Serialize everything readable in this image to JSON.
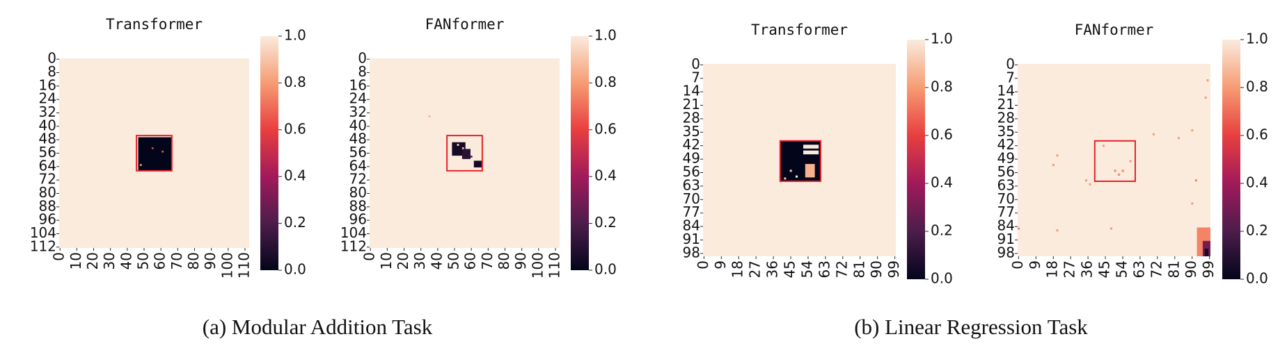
{
  "chart_data": [
    {
      "type": "heatmap",
      "title": "Transformer",
      "size": 113,
      "fill": 1.0,
      "xticks": [
        0,
        10,
        20,
        30,
        40,
        50,
        60,
        70,
        80,
        90,
        100,
        110
      ],
      "yticks": [
        0,
        8,
        16,
        24,
        32,
        40,
        48,
        56,
        64,
        72,
        80,
        88,
        96,
        104,
        112
      ],
      "blocks": [
        {
          "rows": [
            47,
            66
          ],
          "cols": [
            47,
            66
          ],
          "value": 0.0
        }
      ],
      "points": [
        {
          "row": 53,
          "col": 55,
          "value": 0.6
        },
        {
          "row": 55,
          "col": 61,
          "value": 0.65
        },
        {
          "row": 63,
          "col": 48,
          "value": 0.8
        }
      ],
      "highlight": {
        "rows": [
          46,
          67
        ],
        "cols": [
          46,
          67
        ],
        "color": "#e8202a"
      },
      "clim": [
        0,
        1
      ],
      "cticks": [
        {
          "value": 0,
          "label": "0.0"
        },
        0.2,
        0.4,
        0.6,
        0.8,
        {
          "value": 1,
          "label": "1.0"
        }
      ],
      "colormap": [
        "#03051a",
        "#4c1d4b",
        "#a11a5b",
        "#e83f3f",
        "#f69c73",
        "#faebdd"
      ]
    },
    {
      "type": "heatmap",
      "title": "FANformer",
      "size": 113,
      "fill": 1.0,
      "xticks": [
        0,
        10,
        20,
        30,
        40,
        50,
        60,
        70,
        80,
        90,
        100,
        110
      ],
      "yticks": [
        0,
        8,
        16,
        24,
        32,
        40,
        48,
        56,
        64,
        72,
        80,
        88,
        96,
        104,
        112
      ],
      "blocks": [
        {
          "rows": [
            50,
            57
          ],
          "cols": [
            49,
            56
          ],
          "value": 0.05
        },
        {
          "rows": [
            54,
            59
          ],
          "cols": [
            55,
            59
          ],
          "value": 0.1
        },
        {
          "rows": [
            61,
            64
          ],
          "cols": [
            62,
            66
          ],
          "value": 0.05
        }
      ],
      "points": [
        {
          "row": 51,
          "col": 52,
          "value": 1.0
        },
        {
          "row": 53,
          "col": 55,
          "value": 0.9
        },
        {
          "row": 58,
          "col": 60,
          "value": 0.2
        },
        {
          "row": 34,
          "col": 35,
          "value": 0.85
        }
      ],
      "highlight": {
        "rows": [
          46,
          67
        ],
        "cols": [
          46,
          67
        ],
        "color": "#e8202a"
      },
      "clim": [
        0,
        1
      ],
      "cticks": [
        {
          "value": 0,
          "label": "0.0"
        },
        0.2,
        0.4,
        0.6,
        0.8,
        {
          "value": 1,
          "label": "1.0"
        }
      ],
      "colormap": [
        "#03051a",
        "#4c1d4b",
        "#a11a5b",
        "#e83f3f",
        "#f69c73",
        "#faebdd"
      ]
    },
    {
      "type": "heatmap",
      "title": "Transformer",
      "size": 100,
      "fill": 1.0,
      "xticks": [
        0,
        9,
        18,
        27,
        36,
        45,
        54,
        63,
        72,
        81,
        90,
        99
      ],
      "yticks": [
        0,
        7,
        14,
        21,
        28,
        35,
        42,
        49,
        56,
        63,
        70,
        77,
        84,
        91,
        98
      ],
      "blocks": [
        {
          "rows": [
            40,
            60
          ],
          "cols": [
            40,
            60
          ],
          "value": 0.0
        },
        {
          "rows": [
            42,
            43
          ],
          "cols": [
            52,
            59
          ],
          "value": 1.0
        },
        {
          "rows": [
            45,
            46
          ],
          "cols": [
            52,
            59
          ],
          "value": 1.0
        },
        {
          "rows": [
            52,
            58
          ],
          "cols": [
            53,
            57
          ],
          "value": 0.85
        }
      ],
      "points": [
        {
          "row": 55,
          "col": 45,
          "value": 0.9
        },
        {
          "row": 58,
          "col": 48,
          "value": 1.0
        },
        {
          "row": 59,
          "col": 42,
          "value": 0.9
        }
      ],
      "highlight": {
        "rows": [
          40,
          61
        ],
        "cols": [
          40,
          61
        ],
        "color": "#e8202a"
      },
      "clim": [
        0,
        1
      ],
      "cticks": [
        {
          "value": 0,
          "label": "0.0"
        },
        0.2,
        0.4,
        0.6,
        0.8,
        {
          "value": 1,
          "label": "1.0"
        }
      ],
      "colormap": [
        "#03051a",
        "#4c1d4b",
        "#a11a5b",
        "#e83f3f",
        "#f69c73",
        "#faebdd"
      ]
    },
    {
      "type": "heatmap",
      "title": "FANformer",
      "size": 100,
      "fill": 1.0,
      "xticks": [
        0,
        9,
        18,
        27,
        36,
        45,
        54,
        63,
        72,
        81,
        90,
        99
      ],
      "yticks": [
        0,
        7,
        14,
        21,
        28,
        35,
        42,
        49,
        56,
        63,
        70,
        77,
        84,
        91,
        98
      ],
      "blocks": [
        {
          "rows": [
            85,
            99
          ],
          "cols": [
            93,
            99
          ],
          "value": 0.75
        },
        {
          "rows": [
            92,
            99
          ],
          "cols": [
            96,
            99
          ],
          "value": 0.3
        },
        {
          "rows": [
            96,
            99
          ],
          "cols": [
            97,
            98
          ],
          "value": 0.05
        }
      ],
      "points": [
        {
          "row": 42,
          "col": 44,
          "value": 0.8
        },
        {
          "row": 47,
          "col": 20,
          "value": 0.8
        },
        {
          "row": 52,
          "col": 18,
          "value": 0.8
        },
        {
          "row": 55,
          "col": 50,
          "value": 0.75
        },
        {
          "row": 55,
          "col": 54,
          "value": 0.75
        },
        {
          "row": 57,
          "col": 52,
          "value": 0.75
        },
        {
          "row": 60,
          "col": 35,
          "value": 0.8
        },
        {
          "row": 62,
          "col": 37,
          "value": 0.8
        },
        {
          "row": 36,
          "col": 70,
          "value": 0.8
        },
        {
          "row": 38,
          "col": 83,
          "value": 0.8
        },
        {
          "row": 34,
          "col": 90,
          "value": 0.8
        },
        {
          "row": 50,
          "col": 58,
          "value": 0.8
        },
        {
          "row": 85,
          "col": 0,
          "value": 0.75
        },
        {
          "row": 86,
          "col": 20,
          "value": 0.8
        },
        {
          "row": 85,
          "col": 48,
          "value": 0.8
        },
        {
          "row": 8,
          "col": 98,
          "value": 0.8
        },
        {
          "row": 17,
          "col": 97,
          "value": 0.8
        },
        {
          "row": 60,
          "col": 92,
          "value": 0.75
        },
        {
          "row": 72,
          "col": 90,
          "value": 0.8
        }
      ],
      "highlight": {
        "rows": [
          40,
          61
        ],
        "cols": [
          40,
          61
        ],
        "color": "#e8202a"
      },
      "clim": [
        0,
        1
      ],
      "cticks": [
        {
          "value": 0,
          "label": "0.0"
        },
        0.2,
        0.4,
        0.6,
        0.8,
        {
          "value": 1,
          "label": "1.0"
        }
      ],
      "colormap": [
        "#03051a",
        "#4c1d4b",
        "#a11a5b",
        "#e83f3f",
        "#f69c73",
        "#faebdd"
      ]
    }
  ],
  "captions": [
    "(a) Modular Addition Task",
    "(b) Linear Regression Task"
  ]
}
